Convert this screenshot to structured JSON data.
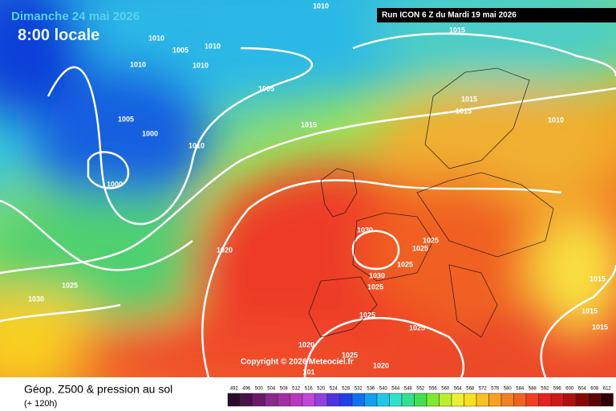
{
  "header": {
    "date": "Dimanche 24 mai 2026",
    "time": "8:00 locale",
    "run": "Run ICON 6 Z du Mardi 19 mai 2026"
  },
  "isobar_labels": [
    "1010",
    "1015",
    "1010",
    "1005",
    "1010",
    "1010",
    "1010",
    "1005",
    "1015",
    "1015",
    "1005",
    "1000",
    "1015",
    "1010",
    "1010",
    "1000",
    "1030",
    "1025",
    "1025",
    "1020",
    "1025",
    "1030",
    "1025",
    "1015",
    "1025",
    "1030",
    "1015",
    "1025",
    "1025",
    "1015",
    "1020",
    "1025",
    "1020",
    "101"
  ],
  "copyright": "Copyright © 2026 Meteociel.fr",
  "footer": {
    "title": "Géop. Z500 & pression au sol",
    "lead": "(+ 120h)"
  },
  "legend": {
    "labels": [
      "492",
      "496",
      "500",
      "504",
      "508",
      "512",
      "516",
      "520",
      "524",
      "528",
      "532",
      "536",
      "540",
      "544",
      "548",
      "552",
      "556",
      "560",
      "564",
      "568",
      "572",
      "576",
      "580",
      "584",
      "588",
      "592",
      "596",
      "600",
      "604",
      "608",
      "612"
    ]
  }
}
